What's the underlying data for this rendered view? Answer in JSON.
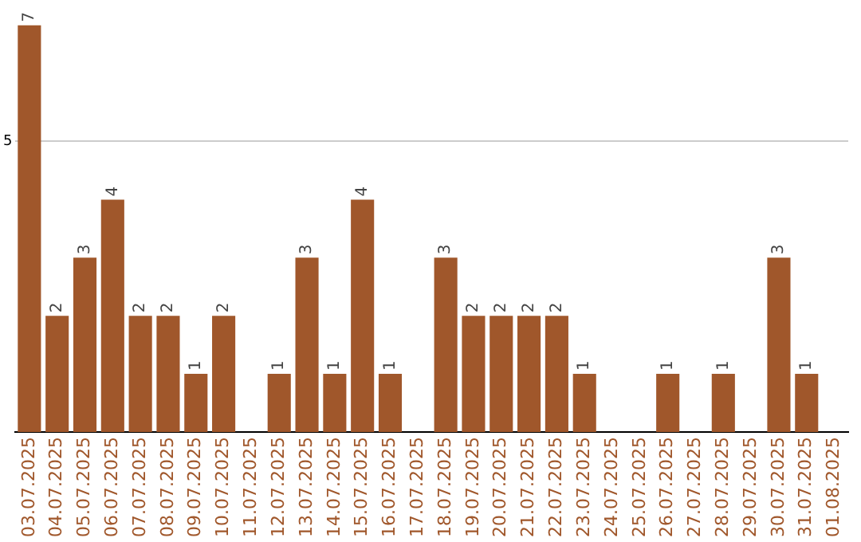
{
  "chart_data": {
    "type": "bar",
    "categories": [
      "03.07.2025",
      "04.07.2025",
      "05.07.2025",
      "06.07.2025",
      "07.07.2025",
      "08.07.2025",
      "09.07.2025",
      "10.07.2025",
      "11.07.2025",
      "12.07.2025",
      "13.07.2025",
      "14.07.2025",
      "15.07.2025",
      "16.07.2025",
      "17.07.2025",
      "18.07.2025",
      "19.07.2025",
      "20.07.2025",
      "21.07.2025",
      "22.07.2025",
      "23.07.2025",
      "24.07.2025",
      "25.07.2025",
      "26.07.2025",
      "27.07.2025",
      "28.07.2025",
      "29.07.2025",
      "30.07.2025",
      "31.07.2025",
      "01.08.2025"
    ],
    "values": [
      7,
      2,
      3,
      4,
      2,
      2,
      1,
      2,
      0,
      1,
      3,
      1,
      4,
      1,
      0,
      3,
      2,
      2,
      2,
      2,
      1,
      0,
      0,
      1,
      0,
      1,
      0,
      3,
      1,
      0
    ],
    "value_labels": [
      "7",
      "2",
      "3",
      "4",
      "2",
      "2",
      "1",
      "2",
      null,
      "1",
      "3",
      "1",
      "4",
      "1",
      null,
      "3",
      "2",
      "2",
      "2",
      "2",
      "1",
      null,
      null,
      "1",
      null,
      "1",
      null,
      "3",
      "1",
      null
    ],
    "color": "#a0572b",
    "ylim": [
      0,
      7.05
    ],
    "yticks": [
      5
    ],
    "grid": "y"
  }
}
